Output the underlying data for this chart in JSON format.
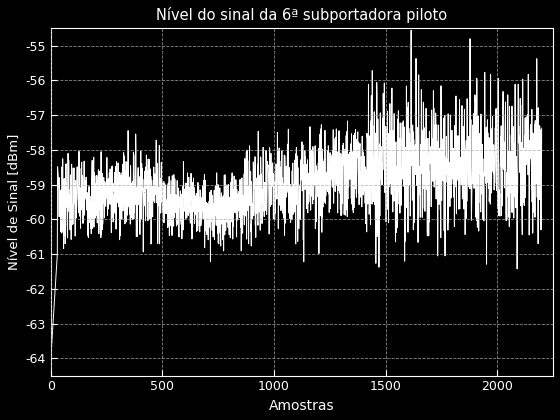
{
  "title": "Nível do sinal da 6ª subportadora piloto",
  "xlabel": "Amostras",
  "ylabel": "Nível de Sinal [dBm]",
  "xlim": [
    0,
    2250
  ],
  "ylim": [
    -64.5,
    -54.5
  ],
  "yticks": [
    -64,
    -63,
    -62,
    -61,
    -60,
    -59,
    -58,
    -57,
    -56,
    -55
  ],
  "xticks": [
    0,
    500,
    1000,
    1500,
    2000
  ],
  "background_color": "#000000",
  "axes_bg_color": "#000000",
  "line_color": "#ffffff",
  "grid_color": "#aaaaaa",
  "spine_color": "#ffffff",
  "tick_color": "#ffffff",
  "n_samples": 2200
}
